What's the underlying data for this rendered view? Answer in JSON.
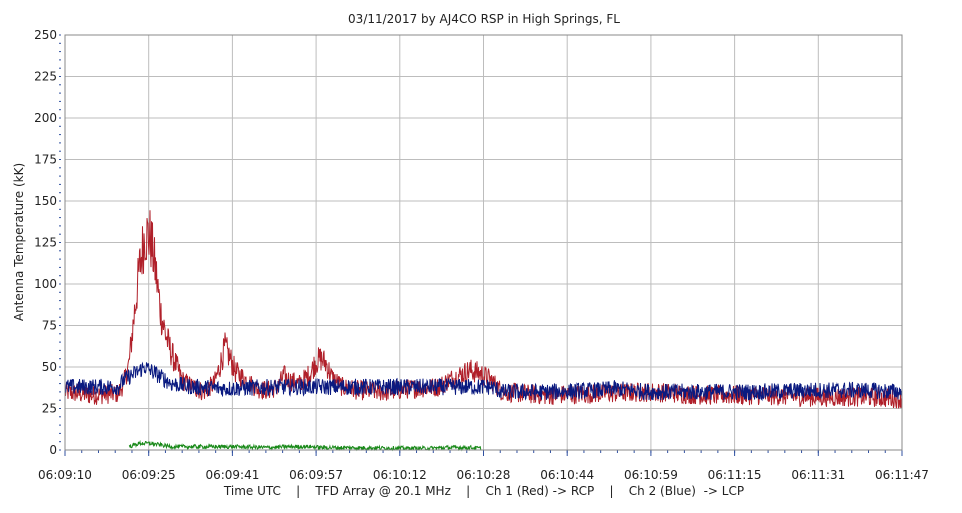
{
  "chart_data": {
    "type": "line",
    "title": "03/11/2017  by  AJ4CO RSP  in  High Springs, FL",
    "ylabel": "Antenna Temperature (kK)",
    "xlabel": "Time UTC    |    TFD Array @ 20.1 MHz    |    Ch 1 (Red) -> RCP    |    Ch 2 (Blue)  -> LCP",
    "ylim": [
      0,
      250
    ],
    "yticks": [
      "0",
      "25",
      "50",
      "75",
      "100",
      "125",
      "150",
      "175",
      "200",
      "225",
      "250"
    ],
    "xtick_labels": [
      "06:09:10",
      "06:09:25",
      "06:09:41",
      "06:09:57",
      "06:10:12",
      "06:10:28",
      "06:10:44",
      "06:10:59",
      "06:11:15",
      "06:11:31",
      "06:11:47"
    ],
    "xlim_seconds": [
      0,
      157
    ],
    "grid": true,
    "colors": {
      "red": "#b0202a",
      "blue": "#0a1a80",
      "green": "#1a8a1a",
      "grid": "#bdbdbd"
    },
    "series": [
      {
        "name": "Ch 1 (Red) -> RCP",
        "color": "#b0202a",
        "points": [
          [
            0,
            35
          ],
          [
            5,
            33
          ],
          [
            10,
            34
          ],
          [
            11,
            40
          ],
          [
            12,
            52
          ],
          [
            13,
            82
          ],
          [
            14,
            110
          ],
          [
            15,
            130
          ],
          [
            16,
            128
          ],
          [
            17,
            108
          ],
          [
            18,
            82
          ],
          [
            19,
            68
          ],
          [
            20,
            58
          ],
          [
            21,
            50
          ],
          [
            22,
            42
          ],
          [
            24,
            38
          ],
          [
            26,
            35
          ],
          [
            28,
            40
          ],
          [
            29,
            50
          ],
          [
            30,
            62
          ],
          [
            31,
            55
          ],
          [
            32,
            47
          ],
          [
            34,
            42
          ],
          [
            36,
            37
          ],
          [
            38,
            36
          ],
          [
            40,
            38
          ],
          [
            41,
            45
          ],
          [
            42,
            42
          ],
          [
            44,
            40
          ],
          [
            46,
            46
          ],
          [
            47,
            53
          ],
          [
            48,
            55
          ],
          [
            49,
            52
          ],
          [
            50,
            44
          ],
          [
            52,
            38
          ],
          [
            55,
            36
          ],
          [
            60,
            35
          ],
          [
            65,
            37
          ],
          [
            70,
            38
          ],
          [
            72,
            42
          ],
          [
            74,
            45
          ],
          [
            76,
            48
          ],
          [
            78,
            46
          ],
          [
            80,
            42
          ],
          [
            82,
            35
          ],
          [
            90,
            33
          ],
          [
            100,
            34
          ],
          [
            110,
            35
          ],
          [
            120,
            33
          ],
          [
            130,
            33
          ],
          [
            140,
            32
          ],
          [
            150,
            32
          ],
          [
            157,
            31
          ]
        ]
      },
      {
        "name": "Ch 2 (Blue)  -> LCP",
        "color": "#0a1a80",
        "points": [
          [
            0,
            38
          ],
          [
            10,
            38
          ],
          [
            11,
            42
          ],
          [
            13,
            46
          ],
          [
            15,
            50
          ],
          [
            16,
            48
          ],
          [
            18,
            44
          ],
          [
            20,
            40
          ],
          [
            24,
            38
          ],
          [
            30,
            37
          ],
          [
            40,
            38
          ],
          [
            50,
            38
          ],
          [
            60,
            38
          ],
          [
            70,
            38
          ],
          [
            80,
            38
          ],
          [
            82,
            35
          ],
          [
            90,
            35
          ],
          [
            100,
            36
          ],
          [
            103,
            37
          ],
          [
            110,
            35
          ],
          [
            120,
            35
          ],
          [
            130,
            35
          ],
          [
            140,
            36
          ],
          [
            150,
            36
          ],
          [
            157,
            35
          ]
        ]
      },
      {
        "name": "",
        "color": "#1a8a1a",
        "points": [
          [
            12,
            2
          ],
          [
            14,
            4
          ],
          [
            16,
            4
          ],
          [
            18,
            3
          ],
          [
            20,
            2
          ],
          [
            28,
            2
          ],
          [
            30,
            2
          ],
          [
            32,
            2
          ],
          [
            38,
            1.5
          ],
          [
            42,
            2
          ],
          [
            46,
            2
          ],
          [
            48,
            1.5
          ],
          [
            68,
            1
          ],
          [
            72,
            1.5
          ],
          [
            76,
            1.5
          ],
          [
            78,
            1
          ]
        ]
      }
    ]
  }
}
